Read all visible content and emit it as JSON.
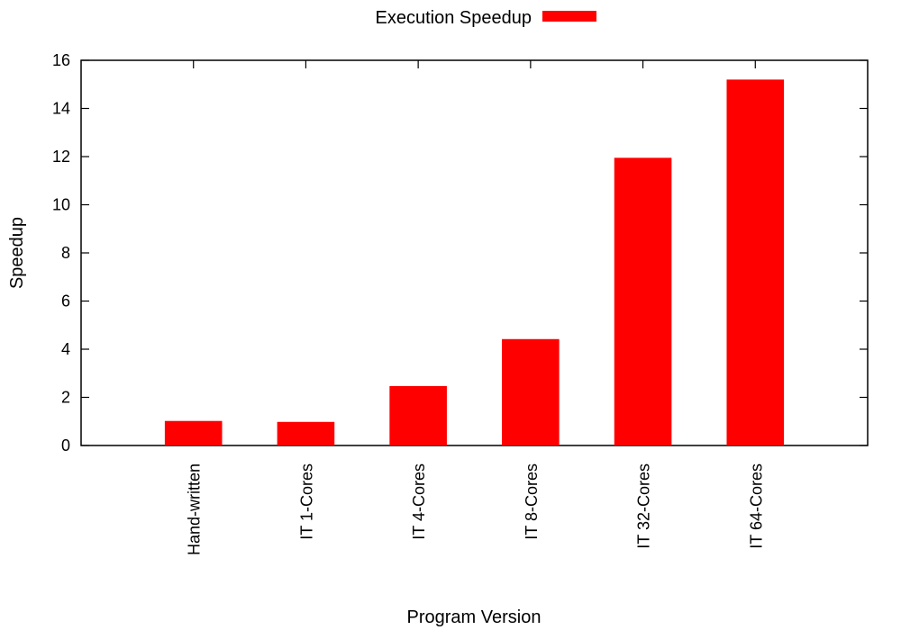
{
  "chart_data": {
    "type": "bar",
    "categories": [
      "Hand-written",
      "IT 1-Cores",
      "IT 4-Cores",
      "IT 8-Cores",
      "IT 32-Cores",
      "IT 64-Cores"
    ],
    "series": [
      {
        "name": "Execution Speedup",
        "values": [
          1.02,
          0.98,
          2.47,
          4.42,
          11.95,
          15.2
        ],
        "color": "#ff0000"
      }
    ],
    "title": "",
    "xlabel": "Program Version",
    "ylabel": "Speedup",
    "ylim": [
      0,
      16
    ],
    "yticks": [
      0,
      2,
      4,
      6,
      8,
      10,
      12,
      14,
      16
    ],
    "grid": false,
    "legend": "top-center"
  }
}
